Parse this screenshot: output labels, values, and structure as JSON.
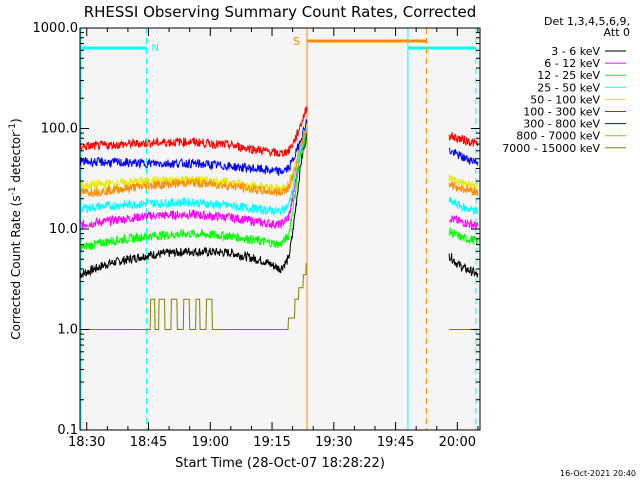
{
  "chart_data": {
    "type": "line",
    "title": "RHESSI Observing Summary Count Rates, Corrected",
    "xlabel": "Start Time (28-Oct-07 18:28:22)",
    "ylabel": "Corrected Count Rate (s⁻¹ detector⁻¹)",
    "ylabel_main": "Corrected Count Rate (s",
    "ylabel_mid": " detector",
    "ylabel_end": ")",
    "ylabel_sup": "-1",
    "yscale": "log",
    "xlim": [
      "18:28:22",
      "20:05:30"
    ],
    "ylim": [
      0.1,
      1000.0
    ],
    "x_ticks": [
      "18:30",
      "18:45",
      "19:00",
      "19:15",
      "19:30",
      "19:45",
      "20:00"
    ],
    "y_ticks": [
      "0.1",
      "1.0",
      "10.0",
      "100.0",
      "1000.0"
    ],
    "timestamp": "16-Oct-2021 20:40",
    "legend": {
      "placement": "outside-right",
      "header": [
        "Det 1,3,4,5,6,9,",
        "Att 0"
      ]
    },
    "series": [
      {
        "name": "3 - 6 keV",
        "color": "#000000",
        "segments": [
          {
            "x": [
              "18:28:22",
              "18:35",
              "18:45",
              "18:55",
              "19:05",
              "19:13",
              "19:17",
              "19:19",
              "19:20",
              "19:21",
              "19:22",
              "19:23:30"
            ],
            "y": [
              3.5,
              4.5,
              5.5,
              6,
              5.8,
              4.8,
              4,
              5,
              9,
              20,
              45,
              90
            ]
          },
          {
            "x": [
              "19:58",
              "20:00",
              "20:02",
              "20:04",
              "20:05"
            ],
            "y": [
              5.5,
              4.5,
              4,
              3.7,
              3.4
            ]
          }
        ]
      },
      {
        "name": "6 - 12 keV",
        "color": "#ff00ff",
        "segments": [
          {
            "x": [
              "18:28:22",
              "18:35",
              "18:45",
              "18:55",
              "19:05",
              "19:13",
              "19:17",
              "19:19",
              "19:20",
              "19:21",
              "19:22",
              "19:23:30"
            ],
            "y": [
              11,
              12,
              13.5,
              14,
              13,
              11.5,
              11,
              13,
              20,
              35,
              60,
              100
            ]
          },
          {
            "x": [
              "19:58",
              "20:00",
              "20:02",
              "20:04",
              "20:05"
            ],
            "y": [
              13,
              12,
              11.5,
              11,
              10.5
            ]
          }
        ]
      },
      {
        "name": "12 - 25 keV",
        "color": "#00ff00",
        "segments": [
          {
            "x": [
              "18:28:22",
              "18:35",
              "18:45",
              "18:55",
              "19:05",
              "19:13",
              "19:17",
              "19:19",
              "19:20",
              "19:21",
              "19:22",
              "19:23:30"
            ],
            "y": [
              6.5,
              7.5,
              8.5,
              9,
              8.5,
              7.5,
              7,
              8.5,
              15,
              30,
              55,
              95
            ]
          },
          {
            "x": [
              "19:58",
              "20:00",
              "20:02",
              "20:04",
              "20:05"
            ],
            "y": [
              9.5,
              8.5,
              8,
              7.8,
              7.5
            ]
          }
        ]
      },
      {
        "name": "25 - 50 keV",
        "color": "#00ffff",
        "segments": [
          {
            "x": [
              "18:28:22",
              "18:35",
              "18:45",
              "18:55",
              "19:05",
              "19:13",
              "19:17",
              "19:19",
              "19:20",
              "19:21",
              "19:22",
              "19:23:30"
            ],
            "y": [
              16,
              17,
              18,
              18.5,
              17,
              15.5,
              15,
              17,
              25,
              40,
              65,
              100
            ]
          },
          {
            "x": [
              "19:58",
              "20:00",
              "20:02",
              "20:04",
              "20:05"
            ],
            "y": [
              19,
              17.5,
              16,
              15.5,
              15
            ]
          }
        ]
      },
      {
        "name": "50 - 100 keV",
        "color": "#e8e800",
        "segments": [
          {
            "x": [
              "18:28:22",
              "18:35",
              "18:45",
              "18:55",
              "19:05",
              "19:13",
              "19:17",
              "19:19",
              "19:20",
              "19:21",
              "19:22",
              "19:23:30"
            ],
            "y": [
              27,
              28,
              30,
              31,
              29,
              26,
              25,
              28,
              36,
              50,
              75,
              110
            ]
          },
          {
            "x": [
              "19:58",
              "20:00",
              "20:02",
              "20:04",
              "20:05"
            ],
            "y": [
              32,
              30,
              28,
              27,
              26
            ]
          }
        ]
      },
      {
        "name": "100 - 300 keV",
        "color": "#ff0000",
        "segments": [
          {
            "x": [
              "18:28:22",
              "18:35",
              "18:45",
              "18:55",
              "19:05",
              "19:13",
              "19:17",
              "19:19",
              "19:20",
              "19:21",
              "19:22",
              "19:23:30"
            ],
            "y": [
              66,
              68,
              72,
              74,
              68,
              60,
              56,
              60,
              70,
              85,
              110,
              165
            ]
          },
          {
            "x": [
              "19:58",
              "20:00",
              "20:02",
              "20:04",
              "20:05"
            ],
            "y": [
              85,
              80,
              76,
              72,
              70
            ]
          }
        ]
      },
      {
        "name": "300 - 800 keV",
        "color": "#0000ff",
        "segments": [
          {
            "x": [
              "18:28:22",
              "18:35",
              "18:45",
              "18:55",
              "19:05",
              "19:13",
              "19:17",
              "19:19",
              "19:20",
              "19:21",
              "19:22",
              "19:23:30"
            ],
            "y": [
              47,
              46,
              45,
              45,
              42,
              39,
              37,
              40,
              48,
              60,
              80,
              120
            ]
          },
          {
            "x": [
              "19:58",
              "20:00",
              "20:02",
              "20:04",
              "20:05"
            ],
            "y": [
              60,
              55,
              50,
              48,
              46
            ]
          }
        ]
      },
      {
        "name": "800 - 7000 keV",
        "color": "#ff8c00",
        "segments": [
          {
            "x": [
              "18:28:22",
              "18:35",
              "18:45",
              "18:55",
              "19:05",
              "19:13",
              "19:17",
              "19:19",
              "19:20",
              "19:21",
              "19:22",
              "19:23:30"
            ],
            "y": [
              23,
              24,
              27,
              29,
              27,
              24,
              23,
              26,
              33,
              45,
              70,
              105
            ]
          },
          {
            "x": [
              "19:58",
              "20:00",
              "20:02",
              "20:04",
              "20:05"
            ],
            "y": [
              28,
              26,
              25,
              24,
              23
            ]
          }
        ]
      },
      {
        "name": "7000 - 15000 keV",
        "color": "#808000",
        "segments": [
          {
            "x": [
              "18:28:22",
              "18:45",
              "18:46",
              "18:47",
              "18:48",
              "18:50",
              "18:51",
              "18:53",
              "18:54",
              "18:56",
              "18:57",
              "18:58",
              "19:00",
              "19:01",
              "19:05",
              "19:18",
              "19:20",
              "19:21",
              "19:22",
              "19:23",
              "19:23:30"
            ],
            "y": [
              1.0,
              1.0,
              2.0,
              1.0,
              2.0,
              1.0,
              2.0,
              1.0,
              2.0,
              1.0,
              2.0,
              1.0,
              2.0,
              1.0,
              1.0,
              1.0,
              1.3,
              2.0,
              2.6,
              3.5,
              4.5
            ]
          },
          {
            "x": [
              "19:58",
              "20:05"
            ],
            "y": [
              1.0,
              1.0
            ]
          }
        ]
      }
    ],
    "annotations": {
      "night_label": "N",
      "saa_label": "S",
      "night_color": "#00ffff",
      "saa_color": "#ff8c00",
      "night_bars": [
        [
          "18:28:22",
          "18:44:30"
        ],
        [
          "19:48:00",
          "20:04:30"
        ]
      ],
      "saa_bars": [
        [
          "19:23:30",
          "19:52:30"
        ]
      ],
      "night_start_lines": [
        "19:48:00"
      ],
      "night_end_lines": [
        "18:44:30",
        "20:04:30"
      ],
      "saa_start_lines": [
        "19:23:30"
      ],
      "saa_end_lines": [
        "19:52:30"
      ]
    }
  }
}
